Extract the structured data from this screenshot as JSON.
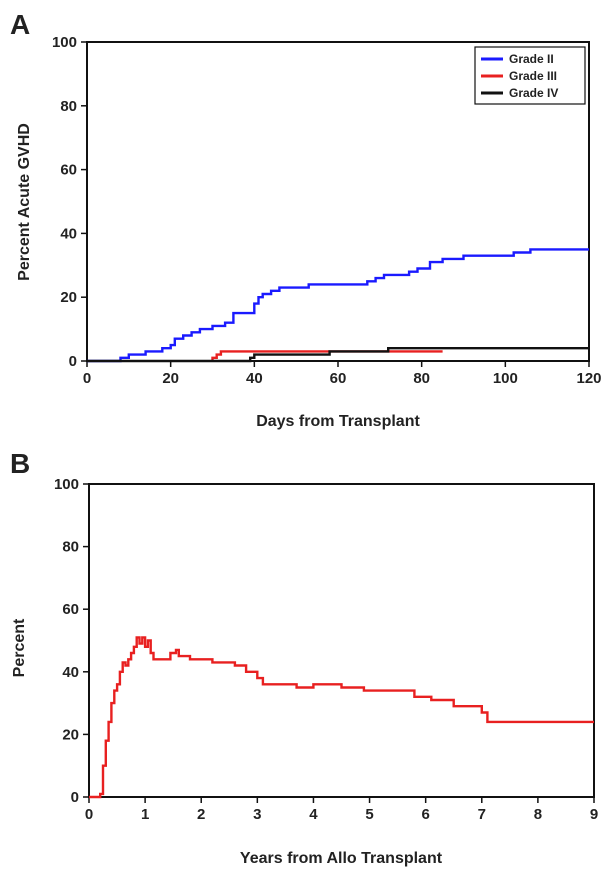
{
  "chart_data": [
    {
      "type": "line",
      "panel_label": "A",
      "title": "",
      "xlabel": "Days from Transplant",
      "ylabel": "Percent Acute GVHD",
      "xlim": [
        0,
        120
      ],
      "ylim": [
        0,
        100
      ],
      "xticks": [
        0,
        20,
        40,
        60,
        80,
        100,
        120
      ],
      "yticks": [
        0,
        20,
        40,
        60,
        80,
        100
      ],
      "legend_position": "top-right",
      "grid": false,
      "step": true,
      "series": [
        {
          "name": "Grade II",
          "color": "#1a1aff",
          "points": [
            [
              0,
              0
            ],
            [
              8,
              0
            ],
            [
              8,
              1
            ],
            [
              10,
              1
            ],
            [
              10,
              2
            ],
            [
              14,
              2
            ],
            [
              14,
              3
            ],
            [
              18,
              3
            ],
            [
              18,
              4
            ],
            [
              20,
              4
            ],
            [
              20,
              5
            ],
            [
              21,
              5
            ],
            [
              21,
              7
            ],
            [
              23,
              7
            ],
            [
              23,
              8
            ],
            [
              25,
              8
            ],
            [
              25,
              9
            ],
            [
              27,
              9
            ],
            [
              27,
              10
            ],
            [
              30,
              10
            ],
            [
              30,
              11
            ],
            [
              33,
              11
            ],
            [
              33,
              12
            ],
            [
              35,
              12
            ],
            [
              35,
              15
            ],
            [
              40,
              15
            ],
            [
              40,
              18
            ],
            [
              41,
              18
            ],
            [
              41,
              20
            ],
            [
              42,
              20
            ],
            [
              42,
              21
            ],
            [
              44,
              21
            ],
            [
              44,
              22
            ],
            [
              46,
              22
            ],
            [
              46,
              23
            ],
            [
              53,
              23
            ],
            [
              53,
              24
            ],
            [
              67,
              24
            ],
            [
              67,
              25
            ],
            [
              69,
              25
            ],
            [
              69,
              26
            ],
            [
              71,
              26
            ],
            [
              71,
              27
            ],
            [
              77,
              27
            ],
            [
              77,
              28
            ],
            [
              79,
              28
            ],
            [
              79,
              29
            ],
            [
              82,
              29
            ],
            [
              82,
              31
            ],
            [
              85,
              31
            ],
            [
              85,
              32
            ],
            [
              90,
              32
            ],
            [
              90,
              33
            ],
            [
              102,
              33
            ],
            [
              102,
              34
            ],
            [
              106,
              34
            ],
            [
              106,
              35
            ],
            [
              120,
              35
            ]
          ]
        },
        {
          "name": "Grade III",
          "color": "#e82020",
          "points": [
            [
              30,
              0
            ],
            [
              30,
              1
            ],
            [
              31,
              1
            ],
            [
              31,
              2
            ],
            [
              32,
              2
            ],
            [
              32,
              3
            ],
            [
              58,
              3
            ],
            [
              72,
              3
            ],
            [
              72,
              3
            ],
            [
              85,
              3
            ]
          ]
        },
        {
          "name": "Grade IV",
          "color": "#111111",
          "points": [
            [
              0,
              0
            ],
            [
              39,
              0
            ],
            [
              39,
              1
            ],
            [
              40,
              1
            ],
            [
              40,
              2
            ],
            [
              58,
              2
            ],
            [
              58,
              3
            ],
            [
              72,
              3
            ],
            [
              72,
              4
            ],
            [
              120,
              4
            ]
          ]
        }
      ]
    },
    {
      "type": "line",
      "panel_label": "B",
      "title": "",
      "xlabel": "Years from Allo Transplant",
      "ylabel": "Percent",
      "xlim": [
        0,
        9
      ],
      "ylim": [
        0,
        100
      ],
      "xticks": [
        0,
        1,
        2,
        3,
        4,
        5,
        6,
        7,
        8,
        9
      ],
      "yticks": [
        0,
        20,
        40,
        60,
        80,
        100
      ],
      "grid": false,
      "step": true,
      "series": [
        {
          "color": "#e82020",
          "points": [
            [
              0,
              0
            ],
            [
              0.2,
              0
            ],
            [
              0.2,
              1
            ],
            [
              0.25,
              1
            ],
            [
              0.25,
              10
            ],
            [
              0.3,
              10
            ],
            [
              0.3,
              18
            ],
            [
              0.35,
              18
            ],
            [
              0.35,
              24
            ],
            [
              0.4,
              24
            ],
            [
              0.4,
              30
            ],
            [
              0.45,
              30
            ],
            [
              0.45,
              34
            ],
            [
              0.5,
              34
            ],
            [
              0.5,
              36
            ],
            [
              0.55,
              36
            ],
            [
              0.55,
              40
            ],
            [
              0.6,
              40
            ],
            [
              0.6,
              43
            ],
            [
              0.65,
              43
            ],
            [
              0.65,
              42
            ],
            [
              0.7,
              42
            ],
            [
              0.7,
              44
            ],
            [
              0.75,
              44
            ],
            [
              0.75,
              46
            ],
            [
              0.8,
              46
            ],
            [
              0.8,
              48
            ],
            [
              0.85,
              48
            ],
            [
              0.85,
              51
            ],
            [
              0.9,
              51
            ],
            [
              0.9,
              49
            ],
            [
              0.95,
              49
            ],
            [
              0.95,
              51
            ],
            [
              1.0,
              51
            ],
            [
              1.0,
              48
            ],
            [
              1.05,
              48
            ],
            [
              1.05,
              50
            ],
            [
              1.1,
              50
            ],
            [
              1.1,
              46
            ],
            [
              1.15,
              46
            ],
            [
              1.15,
              44
            ],
            [
              1.45,
              44
            ],
            [
              1.45,
              46
            ],
            [
              1.55,
              46
            ],
            [
              1.55,
              47
            ],
            [
              1.6,
              47
            ],
            [
              1.6,
              45
            ],
            [
              1.8,
              45
            ],
            [
              1.8,
              44
            ],
            [
              2.2,
              44
            ],
            [
              2.2,
              43
            ],
            [
              2.6,
              43
            ],
            [
              2.6,
              42
            ],
            [
              2.8,
              42
            ],
            [
              2.8,
              40
            ],
            [
              3.0,
              40
            ],
            [
              3.0,
              38
            ],
            [
              3.1,
              38
            ],
            [
              3.1,
              36
            ],
            [
              3.7,
              36
            ],
            [
              3.7,
              35
            ],
            [
              4.0,
              35
            ],
            [
              4.0,
              36
            ],
            [
              4.5,
              36
            ],
            [
              4.5,
              35
            ],
            [
              4.9,
              35
            ],
            [
              4.9,
              34
            ],
            [
              5.8,
              34
            ],
            [
              5.8,
              32
            ],
            [
              6.1,
              32
            ],
            [
              6.1,
              31
            ],
            [
              6.5,
              31
            ],
            [
              6.5,
              29
            ],
            [
              7.0,
              29
            ],
            [
              7.0,
              27
            ],
            [
              7.1,
              27
            ],
            [
              7.1,
              24
            ],
            [
              9.0,
              24
            ]
          ]
        }
      ]
    }
  ]
}
